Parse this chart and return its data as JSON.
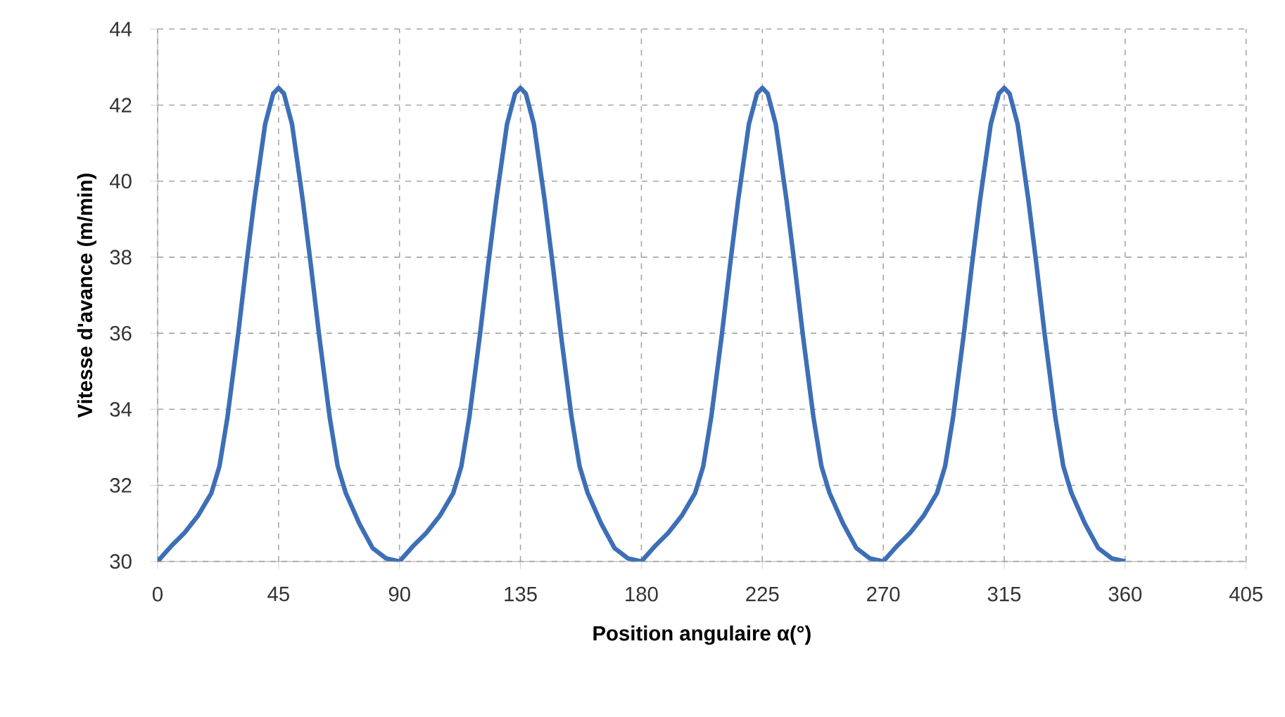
{
  "chart_data": {
    "type": "line",
    "xlabel": "Position angulaire α(°)",
    "ylabel": "Vitesse d'avance (m/min)",
    "x": [
      0,
      5,
      10,
      15,
      20,
      23,
      26,
      30,
      33,
      36,
      40,
      43,
      45,
      47,
      50,
      54,
      57,
      60,
      64,
      67,
      70,
      75,
      80,
      85,
      90,
      95,
      100,
      105,
      110,
      113,
      116,
      120,
      123,
      126,
      130,
      133,
      135,
      137,
      140,
      144,
      147,
      150,
      154,
      157,
      160,
      165,
      170,
      175,
      180,
      185,
      190,
      195,
      200,
      203,
      206,
      210,
      213,
      216,
      220,
      223,
      225,
      227,
      230,
      234,
      237,
      240,
      244,
      247,
      250,
      255,
      260,
      265,
      270,
      275,
      280,
      285,
      290,
      293,
      296,
      300,
      303,
      306,
      310,
      313,
      315,
      317,
      320,
      324,
      327,
      330,
      334,
      337,
      340,
      345,
      350,
      355,
      360
    ],
    "values": [
      30,
      30.4,
      30.75,
      31.2,
      31.8,
      32.5,
      33.8,
      36.0,
      37.8,
      39.5,
      41.5,
      42.3,
      42.45,
      42.3,
      41.5,
      39.5,
      37.8,
      36.0,
      33.8,
      32.5,
      31.8,
      31.0,
      30.35,
      30.08,
      30,
      30.4,
      30.75,
      31.2,
      31.8,
      32.5,
      33.8,
      36.0,
      37.8,
      39.5,
      41.5,
      42.3,
      42.45,
      42.3,
      41.5,
      39.5,
      37.8,
      36.0,
      33.8,
      32.5,
      31.8,
      31.0,
      30.35,
      30.08,
      30,
      30.4,
      30.75,
      31.2,
      31.8,
      32.5,
      33.8,
      36.0,
      37.8,
      39.5,
      41.5,
      42.3,
      42.45,
      42.3,
      41.5,
      39.5,
      37.8,
      36.0,
      33.8,
      32.5,
      31.8,
      31.0,
      30.35,
      30.08,
      30,
      30.4,
      30.75,
      31.2,
      31.8,
      32.5,
      33.8,
      36.0,
      37.8,
      39.5,
      41.5,
      42.3,
      42.45,
      42.3,
      41.5,
      39.5,
      37.8,
      36.0,
      33.8,
      32.5,
      31.8,
      31.0,
      30.35,
      30.08,
      30
    ],
    "color": "#3d6fb6",
    "xlim": [
      0,
      405
    ],
    "ylim": [
      30,
      44
    ],
    "xticks": [
      0,
      45,
      90,
      135,
      180,
      225,
      270,
      315,
      360,
      405
    ],
    "yticks": [
      30,
      32,
      34,
      36,
      38,
      40,
      42,
      44
    ],
    "grid": true
  }
}
